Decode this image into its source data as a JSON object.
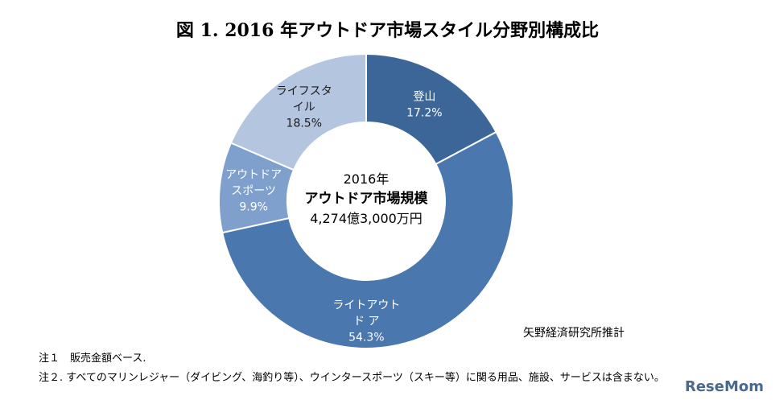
{
  "chart_data": {
    "type": "pie",
    "title": "図 1. 2016 年アウトドア市場スタイル分野別構成比",
    "center": {
      "year": "2016年",
      "label": "アウトドア市場規模",
      "value": "4,274億3,000万円"
    },
    "slices": [
      {
        "name_lines": [
          "登山"
        ],
        "value": 17.2,
        "value_label": "17.2%",
        "color": "#3d6698"
      },
      {
        "name_lines": [
          "ライトアウト",
          "ド ア"
        ],
        "value": 54.3,
        "value_label": "54.3%",
        "color": "#4a77ad"
      },
      {
        "name_lines": [
          "アウトドア",
          "スポーツ"
        ],
        "value": 9.9,
        "value_label": "9.9%",
        "color": "#7f9fcc"
      },
      {
        "name_lines": [
          "ライフスタ",
          "イル"
        ],
        "value": 18.5,
        "value_label": "18.5%",
        "color": "#b4c5e0"
      }
    ]
  },
  "source": "矢野経済研究所推計",
  "notes": [
    "注１　販売金額ベース.",
    "注２.  すべてのマリンレジャー（ダイビング、海釣り等）、ウインタースポーツ（スキー等）に関る用品、施設、サービスは含まない。"
  ],
  "watermark": "ReseMom"
}
